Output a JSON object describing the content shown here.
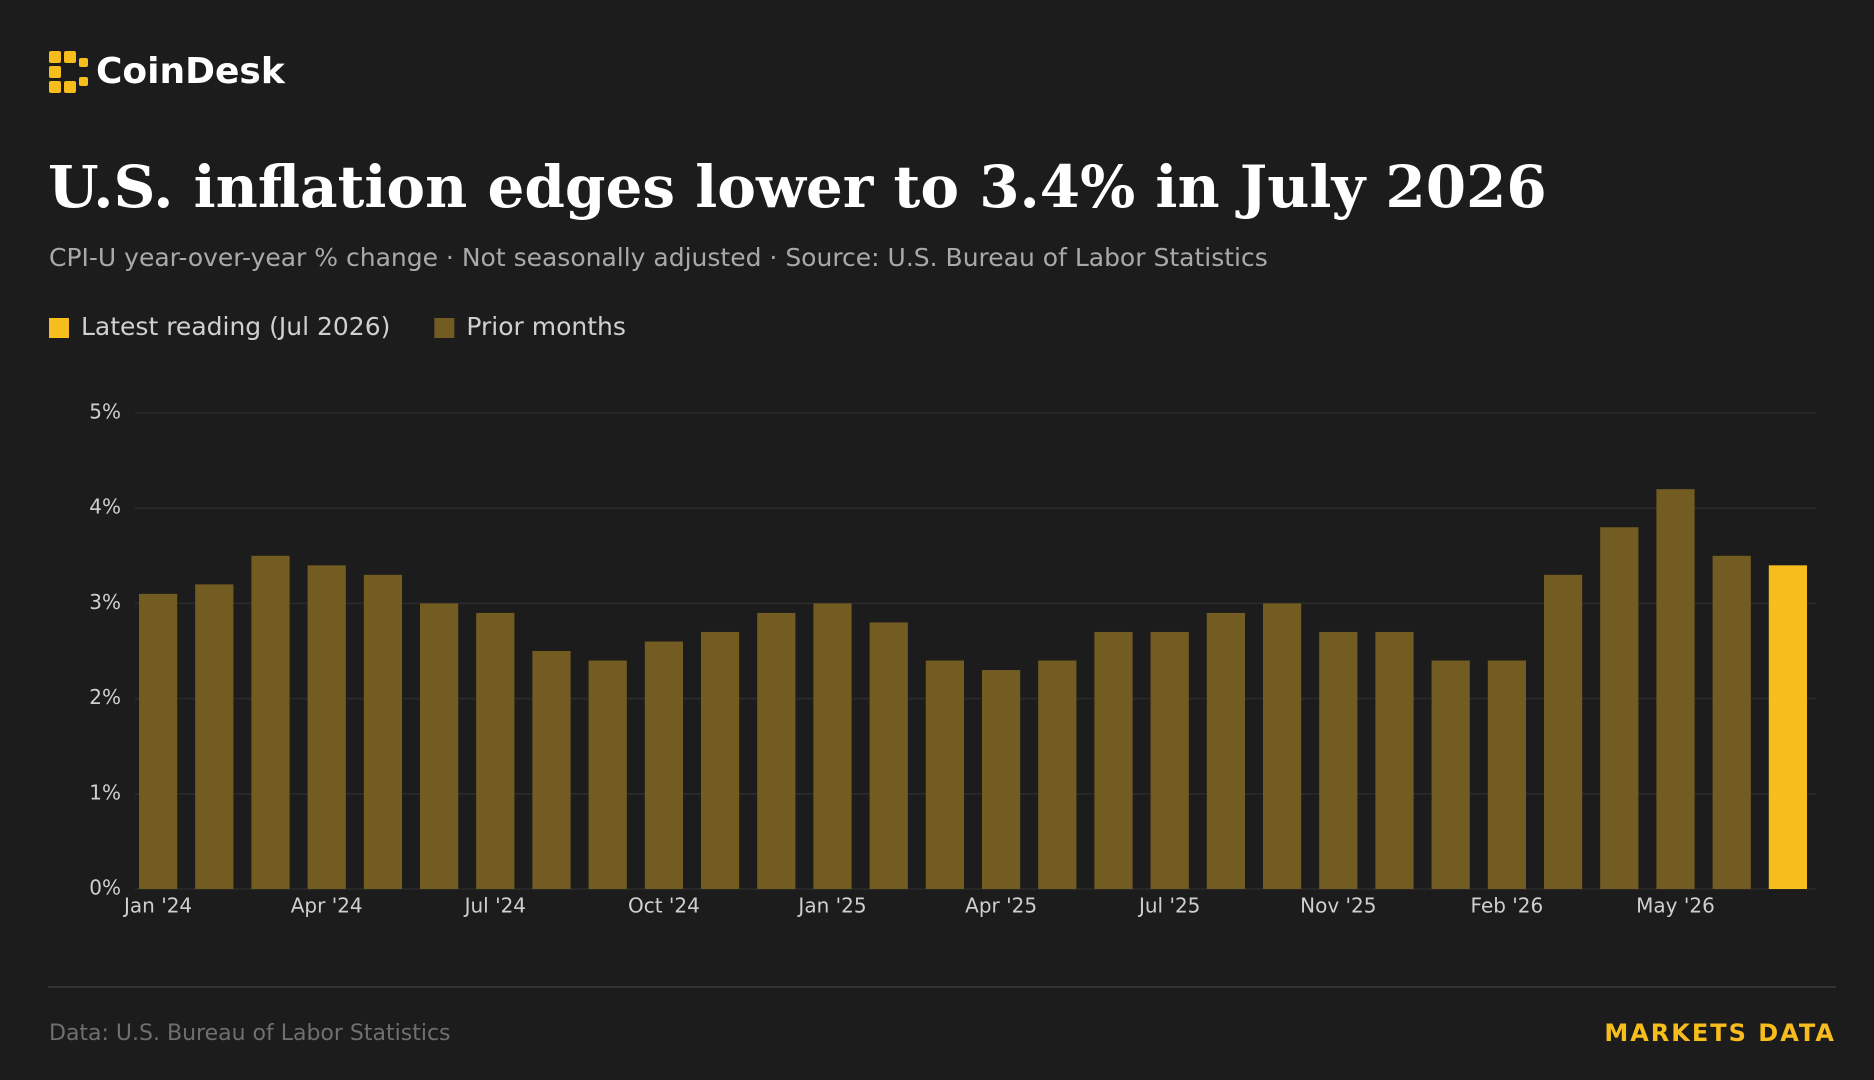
{
  "brand": "CoinDesk",
  "footer": {
    "source": "Data: U.S. Bureau of Labor Statistics",
    "tag": "MARKETS DATA"
  },
  "chart_data": {
    "type": "bar",
    "title": "U.S. inflation edges lower to 3.4% in July 2026",
    "subtitle": "CPI-U year-over-year % change · Not seasonally adjusted · Source: U.S. Bureau of Labor Statistics",
    "legend": [
      {
        "label": "Latest reading (Jul 2026)",
        "color": "#f6bd1d"
      },
      {
        "label": "Prior months",
        "color": "#735c22"
      }
    ],
    "categories": [
      "Jan '24",
      null,
      null,
      "Apr '24",
      null,
      null,
      "Jul '24",
      null,
      null,
      "Oct '24",
      null,
      null,
      "Jan '25",
      null,
      null,
      "Apr '25",
      null,
      null,
      "Jul '25",
      null,
      null,
      "Nov '25",
      null,
      null,
      "Feb '26",
      null,
      null,
      "May '26",
      null,
      null
    ],
    "values": [
      3.1,
      3.2,
      3.5,
      3.4,
      3.3,
      3.0,
      2.9,
      2.5,
      2.4,
      2.6,
      2.7,
      2.9,
      3.0,
      2.8,
      2.4,
      2.3,
      2.4,
      2.7,
      2.7,
      2.9,
      3.0,
      2.7,
      2.7,
      2.4,
      2.4,
      3.3,
      3.8,
      4.2,
      3.5,
      3.4
    ],
    "colors": [
      "#735c22",
      "#735c22",
      "#735c22",
      "#735c22",
      "#735c22",
      "#735c22",
      "#735c22",
      "#735c22",
      "#735c22",
      "#735c22",
      "#735c22",
      "#735c22",
      "#735c22",
      "#735c22",
      "#735c22",
      "#735c22",
      "#735c22",
      "#735c22",
      "#735c22",
      "#735c22",
      "#735c22",
      "#735c22",
      "#735c22",
      "#735c22",
      "#735c22",
      "#735c22",
      "#735c22",
      "#735c22",
      "#735c22",
      "#f6bd1d"
    ],
    "ylim": [
      0,
      5
    ],
    "yticks": [
      {
        "value": 0,
        "label": "0%"
      },
      {
        "value": 1,
        "label": "1%"
      },
      {
        "value": 2,
        "label": "2%"
      },
      {
        "value": 3,
        "label": "3%"
      },
      {
        "value": 4,
        "label": "4%"
      },
      {
        "value": 5,
        "label": "5%"
      }
    ],
    "grid": true
  }
}
